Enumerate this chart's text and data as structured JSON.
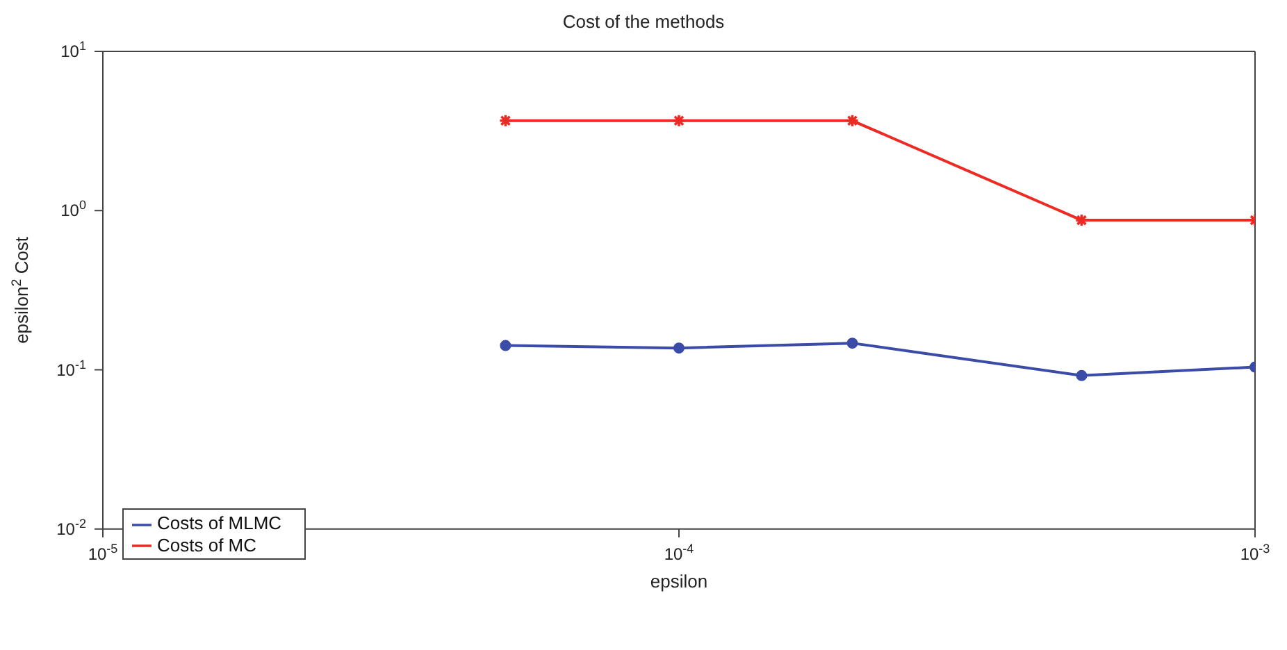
{
  "chart_data": {
    "type": "line",
    "title": "Cost of the methods",
    "xlabel": "epsilon",
    "ylabel": "epsilon$^{2}$ Cost",
    "log": "xy",
    "grid": false,
    "legend": "bottom left",
    "line_style": "solid",
    "x": [
      5e-05,
      0.0001,
      0.0002,
      0.0005,
      0.001
    ],
    "xlim": [
      1e-05,
      0.001
    ],
    "xticks": [
      {
        "value": 1e-05,
        "label": "10$^{-5}$"
      },
      {
        "value": 0.0001,
        "label": "10$^{-4}$"
      },
      {
        "value": 0.001,
        "label": "10$^{-3}$"
      }
    ],
    "ylim": [
      0.01,
      10
    ],
    "yticks": [
      {
        "value": 0.01,
        "label": "10$^{-2}$"
      },
      {
        "value": 0.1,
        "label": "10$^{-1}$"
      },
      {
        "value": 1,
        "label": "10$^{0}$"
      },
      {
        "value": 10,
        "label": "10$^{1}$"
      }
    ],
    "series": [
      {
        "name": "Costs of MLMC",
        "color": "#3b4ba8",
        "marker": "circle",
        "values": [
          0.142,
          0.137,
          0.147,
          0.092,
          0.104
        ]
      },
      {
        "name": "Costs of MC",
        "color": "#ee2a24",
        "marker": "cross",
        "values": [
          3.67,
          3.67,
          3.67,
          0.87,
          0.87
        ]
      }
    ]
  }
}
